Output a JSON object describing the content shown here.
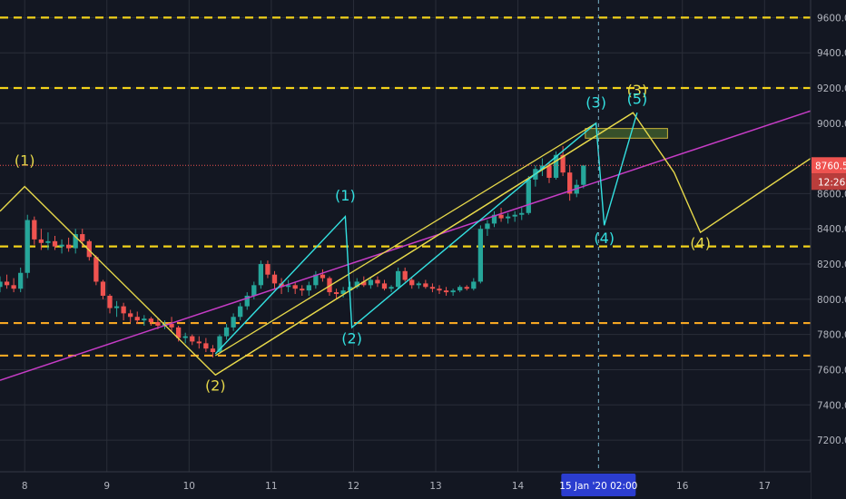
{
  "chart_data": {
    "type": "candlestick",
    "theme": {
      "background": "#131722",
      "grid": "#2a2e39",
      "axis_text": "#b2b5be",
      "up": "#26a69a",
      "down": "#ef5350",
      "level_yellow": "#f2d21b",
      "level_orange": "#f5a623",
      "trend_magenta": "#c53cc5",
      "wave_yellow": "#e6d84a",
      "wave_cyan": "#33e0e0",
      "zone_fill": "#3e5b2c",
      "zone_stroke": "#c9b43a",
      "price_tag": "#ef5350"
    },
    "x_range": [
      7.7,
      17.56
    ],
    "y_range": [
      7020,
      9700
    ],
    "x_ticks": [
      {
        "v": 8,
        "label": "8"
      },
      {
        "v": 9,
        "label": "9"
      },
      {
        "v": 10,
        "label": "10"
      },
      {
        "v": 11,
        "label": "11"
      },
      {
        "v": 12,
        "label": "12"
      },
      {
        "v": 13,
        "label": "13"
      },
      {
        "v": 14,
        "label": "14"
      },
      {
        "v": 16,
        "label": "16"
      },
      {
        "v": 17,
        "label": "17"
      }
    ],
    "y_ticks": [
      {
        "v": 7200,
        "label": "7200.0"
      },
      {
        "v": 7400,
        "label": "7400.0"
      },
      {
        "v": 7600,
        "label": "7600.0"
      },
      {
        "v": 7800,
        "label": "7800.0"
      },
      {
        "v": 8000,
        "label": "8000.0"
      },
      {
        "v": 8200,
        "label": "8200.0"
      },
      {
        "v": 8400,
        "label": "8400.0"
      },
      {
        "v": 8600,
        "label": "8600.0"
      },
      {
        "v": 9000,
        "label": "9000.0"
      },
      {
        "v": 9200,
        "label": "9200.0"
      },
      {
        "v": 9400,
        "label": "9400.0"
      },
      {
        "v": 9600,
        "label": "9600.0"
      }
    ],
    "levels": [
      {
        "price": 9600,
        "color": "yellow"
      },
      {
        "price": 9200,
        "color": "yellow"
      },
      {
        "price": 8300,
        "color": "yellow"
      },
      {
        "price": 7865,
        "color": "orange"
      },
      {
        "price": 7680,
        "color": "orange"
      }
    ],
    "current_price": "8760.5",
    "current_price_value": 8760.5,
    "countdown": "12:26",
    "crosshair": {
      "x": 14.98,
      "label": "15 Jan '20   02:00"
    },
    "trendline": {
      "from": [
        7.7,
        7540
      ],
      "to": [
        17.56,
        9070
      ]
    },
    "zone": {
      "x": [
        14.82,
        15.82
      ],
      "price": [
        8915,
        8970
      ]
    },
    "channel_lines": [
      {
        "from": [
          10.32,
          7680
        ],
        "to": [
          14.95,
          9000
        ]
      },
      {
        "from": [
          10.32,
          7570
        ],
        "to": [
          15.4,
          9060
        ]
      }
    ],
    "wave_paths": [
      {
        "color": "yellow",
        "points": [
          [
            7.7,
            8500
          ],
          [
            8.0,
            8640
          ],
          [
            10.32,
            7570
          ],
          [
            15.4,
            9060
          ],
          [
            15.9,
            8720
          ],
          [
            16.22,
            8380
          ],
          [
            17.56,
            8800
          ]
        ]
      },
      {
        "color": "cyan",
        "points": [
          [
            10.32,
            7690
          ],
          [
            11.9,
            8470
          ],
          [
            11.98,
            7840
          ],
          [
            14.95,
            9000
          ],
          [
            15.05,
            8420
          ],
          [
            15.45,
            9060
          ]
        ]
      }
    ],
    "wave_labels": [
      {
        "text": "(1)",
        "x": 8.0,
        "price": 8760,
        "color": "yellow"
      },
      {
        "text": "(2)",
        "x": 10.32,
        "price": 7480,
        "color": "yellow"
      },
      {
        "text": "(3)",
        "x": 15.45,
        "price": 9160,
        "color": "yellow"
      },
      {
        "text": "(4)",
        "x": 16.22,
        "price": 8290,
        "color": "yellow"
      },
      {
        "text": "(1)",
        "x": 11.9,
        "price": 8560,
        "color": "cyan"
      },
      {
        "text": "(2)",
        "x": 11.98,
        "price": 7750,
        "color": "cyan"
      },
      {
        "text": "(3)",
        "x": 14.95,
        "price": 9090,
        "color": "cyan"
      },
      {
        "text": "(4)",
        "x": 15.05,
        "price": 8320,
        "color": "cyan"
      },
      {
        "text": "(5)",
        "x": 15.45,
        "price": 9110,
        "color": "cyan"
      }
    ],
    "candles_from": 7.7,
    "candle_step": 0.0835,
    "candle_width_ratio": 0.7,
    "candles": [
      [
        8070,
        8130,
        8040,
        8100
      ],
      [
        8100,
        8140,
        8060,
        8080
      ],
      [
        8080,
        8120,
        8040,
        8060
      ],
      [
        8060,
        8180,
        8040,
        8150
      ],
      [
        8150,
        8480,
        8120,
        8450
      ],
      [
        8450,
        8470,
        8310,
        8340
      ],
      [
        8340,
        8400,
        8280,
        8320
      ],
      [
        8320,
        8380,
        8280,
        8330
      ],
      [
        8330,
        8360,
        8280,
        8300
      ],
      [
        8300,
        8340,
        8260,
        8310
      ],
      [
        8310,
        8350,
        8270,
        8290
      ],
      [
        8290,
        8400,
        8260,
        8370
      ],
      [
        8370,
        8400,
        8300,
        8330
      ],
      [
        8330,
        8340,
        8220,
        8240
      ],
      [
        8240,
        8250,
        8080,
        8100
      ],
      [
        8100,
        8110,
        8000,
        8020
      ],
      [
        8020,
        8030,
        7920,
        7950
      ],
      [
        7950,
        7990,
        7900,
        7960
      ],
      [
        7960,
        7980,
        7880,
        7920
      ],
      [
        7920,
        7940,
        7870,
        7900
      ],
      [
        7900,
        7930,
        7860,
        7880
      ],
      [
        7880,
        7910,
        7850,
        7890
      ],
      [
        7890,
        7900,
        7850,
        7870
      ],
      [
        7870,
        7890,
        7830,
        7850
      ],
      [
        7850,
        7880,
        7830,
        7860
      ],
      [
        7860,
        7900,
        7820,
        7840
      ],
      [
        7840,
        7850,
        7760,
        7780
      ],
      [
        7780,
        7810,
        7750,
        7790
      ],
      [
        7790,
        7800,
        7740,
        7760
      ],
      [
        7760,
        7790,
        7720,
        7750
      ],
      [
        7750,
        7780,
        7700,
        7720
      ],
      [
        7720,
        7740,
        7670,
        7700
      ],
      [
        7700,
        7800,
        7690,
        7790
      ],
      [
        7790,
        7860,
        7770,
        7840
      ],
      [
        7840,
        7920,
        7820,
        7900
      ],
      [
        7900,
        7980,
        7880,
        7960
      ],
      [
        7960,
        8040,
        7940,
        8020
      ],
      [
        8020,
        8100,
        8000,
        8080
      ],
      [
        8080,
        8220,
        8060,
        8200
      ],
      [
        8200,
        8220,
        8120,
        8140
      ],
      [
        8140,
        8160,
        8060,
        8090
      ],
      [
        8090,
        8120,
        8030,
        8070
      ],
      [
        8070,
        8110,
        8040,
        8080
      ],
      [
        8080,
        8100,
        8030,
        8060
      ],
      [
        8060,
        8080,
        8020,
        8050
      ],
      [
        8050,
        8100,
        8020,
        8080
      ],
      [
        8080,
        8160,
        8060,
        8140
      ],
      [
        8140,
        8170,
        8100,
        8120
      ],
      [
        8120,
        8130,
        8020,
        8040
      ],
      [
        8040,
        8060,
        8000,
        8030
      ],
      [
        8030,
        8070,
        8010,
        8050
      ],
      [
        8050,
        8100,
        8030,
        8070
      ],
      [
        8070,
        8120,
        8060,
        8100
      ],
      [
        8100,
        8130,
        8070,
        8080
      ],
      [
        8080,
        8120,
        8060,
        8110
      ],
      [
        8110,
        8130,
        8070,
        8090
      ],
      [
        8090,
        8110,
        8050,
        8060
      ],
      [
        8060,
        8080,
        8040,
        8070
      ],
      [
        8070,
        8180,
        8060,
        8160
      ],
      [
        8160,
        8180,
        8100,
        8110
      ],
      [
        8110,
        8120,
        8060,
        8080
      ],
      [
        8080,
        8100,
        8060,
        8090
      ],
      [
        8090,
        8110,
        8060,
        8070
      ],
      [
        8070,
        8090,
        8040,
        8060
      ],
      [
        8060,
        8080,
        8030,
        8050
      ],
      [
        8050,
        8070,
        8020,
        8040
      ],
      [
        8040,
        8060,
        8020,
        8050
      ],
      [
        8050,
        8080,
        8040,
        8070
      ],
      [
        8070,
        8080,
        8050,
        8060
      ],
      [
        8060,
        8120,
        8050,
        8100
      ],
      [
        8100,
        8420,
        8090,
        8400
      ],
      [
        8400,
        8450,
        8360,
        8430
      ],
      [
        8430,
        8500,
        8410,
        8480
      ],
      [
        8480,
        8520,
        8440,
        8460
      ],
      [
        8460,
        8490,
        8430,
        8470
      ],
      [
        8470,
        8500,
        8440,
        8480
      ],
      [
        8480,
        8520,
        8450,
        8490
      ],
      [
        8490,
        8700,
        8480,
        8680
      ],
      [
        8680,
        8760,
        8640,
        8740
      ],
      [
        8740,
        8800,
        8700,
        8760
      ],
      [
        8760,
        8780,
        8660,
        8690
      ],
      [
        8690,
        8840,
        8680,
        8820
      ],
      [
        8820,
        8870,
        8700,
        8720
      ],
      [
        8720,
        8760,
        8560,
        8600
      ],
      [
        8600,
        8680,
        8580,
        8650
      ],
      [
        8650,
        8760,
        8630,
        8760
      ]
    ]
  }
}
